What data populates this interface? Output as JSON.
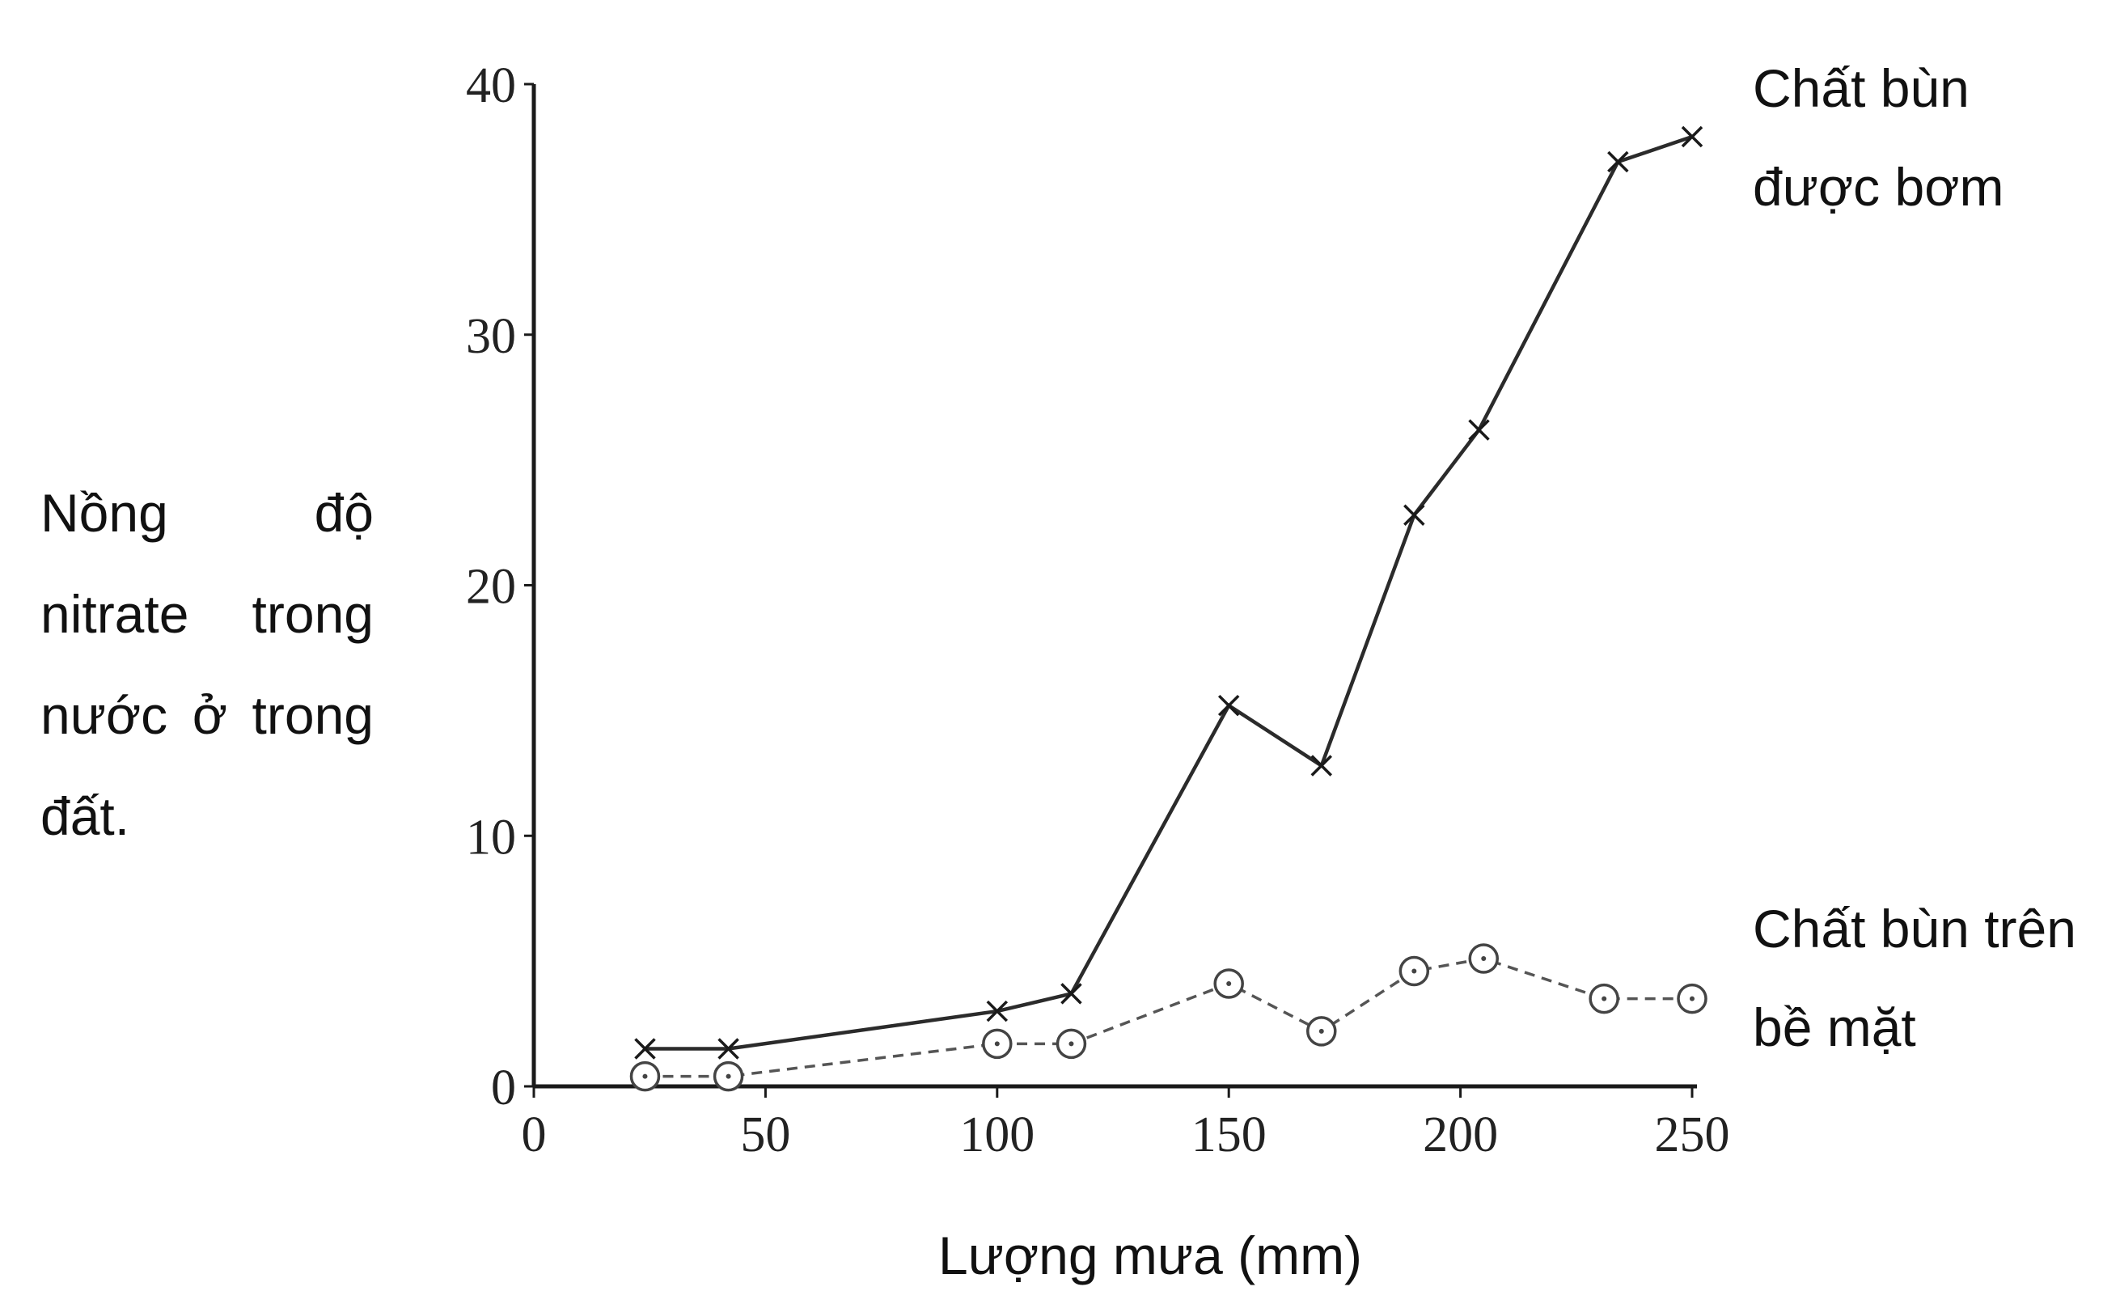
{
  "chart_data": {
    "type": "line",
    "ylabel": "Nồng độ nitrate trong nước ở trong đất.",
    "xlabel": "Lượng mưa (mm)",
    "xlim": [
      0,
      250
    ],
    "ylim": [
      0,
      40
    ],
    "xticks": [
      "0",
      "50",
      "100",
      "150",
      "200",
      "250"
    ],
    "yticks": [
      "0",
      "10",
      "20",
      "30",
      "40"
    ],
    "grid": false,
    "series": [
      {
        "name": "Chất bùn được bơm",
        "marker": "x",
        "line": "solid",
        "color": "#2b2b2b",
        "x": [
          24,
          42,
          100,
          116,
          150,
          170,
          190,
          204,
          234,
          250
        ],
        "y": [
          1.5,
          1.5,
          3.0,
          3.7,
          15.2,
          12.8,
          22.8,
          26.2,
          36.9,
          37.9
        ]
      },
      {
        "name": "Chất bùn trên bề mặt",
        "marker": "circle",
        "line": "dashed",
        "color": "#555555",
        "x": [
          24,
          42,
          100,
          116,
          150,
          170,
          190,
          205,
          231,
          250
        ],
        "y": [
          0.4,
          0.4,
          1.7,
          1.7,
          4.1,
          2.2,
          4.6,
          5.1,
          3.5,
          3.5
        ]
      }
    ]
  }
}
